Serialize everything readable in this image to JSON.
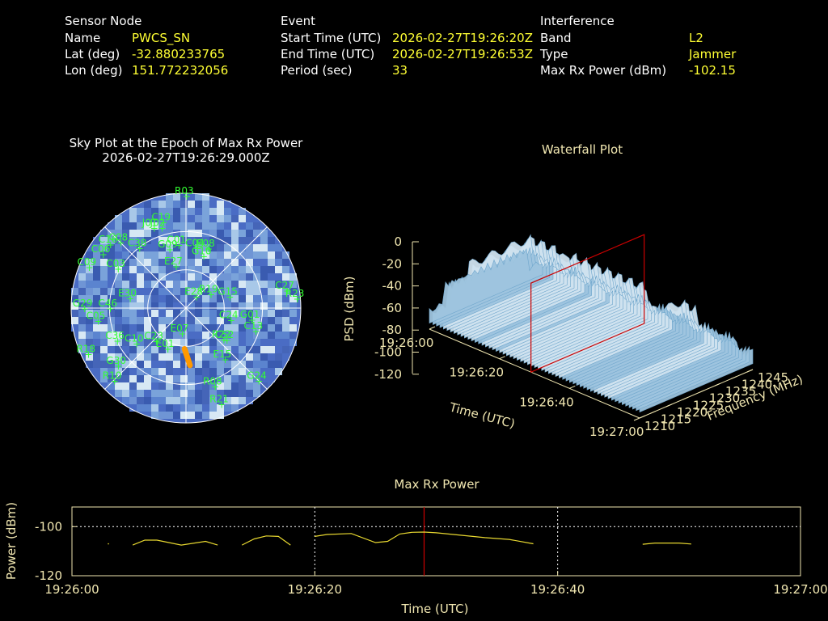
{
  "header": {
    "sensor": {
      "heading": "Sensor Node",
      "rows": [
        {
          "label": "Name",
          "value": "PWCS_SN"
        },
        {
          "label": "Lat (deg)",
          "value": "-32.880233765"
        },
        {
          "label": "Lon (deg)",
          "value": "151.772232056"
        }
      ]
    },
    "event": {
      "heading": "Event",
      "rows": [
        {
          "label": "Start Time (UTC)",
          "value": "2026-02-27T19:26:20Z"
        },
        {
          "label": "End Time (UTC)",
          "value": "2026-02-27T19:26:53Z"
        },
        {
          "label": "Period (sec)",
          "value": "33"
        }
      ]
    },
    "interference": {
      "heading": "Interference",
      "rows": [
        {
          "label": "Band",
          "value": "L2"
        },
        {
          "label": "Type",
          "value": "Jammer"
        },
        {
          "label": "Max Rx Power (dBm)",
          "value": "-102.15"
        }
      ]
    }
  },
  "colors": {
    "satellite_label": "#33ff33",
    "value_text": "#ffff33",
    "cream_text": "#f0e6b0",
    "cursor": "#cc0000",
    "power_line": "#e8d830",
    "jammer_track": "#ff9900"
  },
  "chart_data": [
    {
      "type": "polar-heatmap",
      "title": "Sky Plot at the Epoch of Max Rx Power",
      "subtitle": "2026-02-27T19:26:29.000Z",
      "elevation_rings_deg": [
        0,
        30,
        60,
        90
      ],
      "grid": true,
      "satellites": [
        {
          "prn": "R03",
          "az": 0,
          "el": 2
        },
        {
          "prn": "C19",
          "az": 345,
          "el": 20
        },
        {
          "prn": "J01",
          "az": 338,
          "el": 22
        },
        {
          "prn": "J02",
          "az": 343,
          "el": 24
        },
        {
          "prn": "C16",
          "az": 310,
          "el": 12
        },
        {
          "prn": "C08",
          "az": 315,
          "el": 17
        },
        {
          "prn": "C06",
          "az": 303,
          "el": 12
        },
        {
          "prn": "C09",
          "az": 293,
          "el": 7
        },
        {
          "prn": "C38",
          "az": 322,
          "el": 30
        },
        {
          "prn": "C03",
          "az": 300,
          "el": 28
        },
        {
          "prn": "G09",
          "az": 344,
          "el": 42
        },
        {
          "prn": "C01",
          "az": 353,
          "el": 40
        },
        {
          "prn": "C04",
          "az": 10,
          "el": 42
        },
        {
          "prn": "E08",
          "az": 20,
          "el": 40
        },
        {
          "prn": "G10",
          "az": 18,
          "el": 47
        },
        {
          "prn": "E27",
          "az": 346,
          "el": 56
        },
        {
          "prn": "E28",
          "az": 40,
          "el": 78
        },
        {
          "prn": "R19",
          "az": 60,
          "el": 68
        },
        {
          "prn": "G15",
          "az": 75,
          "el": 55
        },
        {
          "prn": "C27",
          "az": 80,
          "el": 10
        },
        {
          "prn": "R23",
          "az": 85,
          "el": 3
        },
        {
          "prn": "C24",
          "az": 105,
          "el": 54
        },
        {
          "prn": "G01",
          "az": 100,
          "el": 38
        },
        {
          "prn": "C13",
          "az": 108,
          "el": 33
        },
        {
          "prn": "C52",
          "az": 128,
          "el": 50
        },
        {
          "prn": "R22",
          "az": 130,
          "el": 52
        },
        {
          "prn": "E15",
          "az": 143,
          "el": 40
        },
        {
          "prn": "R08",
          "az": 160,
          "el": 25
        },
        {
          "prn": "R21",
          "az": 160,
          "el": 10
        },
        {
          "prn": "G24",
          "az": 135,
          "el": 10
        },
        {
          "prn": "C05",
          "az": 262,
          "el": 20
        },
        {
          "prn": "G29",
          "az": 270,
          "el": 10
        },
        {
          "prn": "C46",
          "az": 270,
          "el": 30
        },
        {
          "prn": "E30",
          "az": 280,
          "el": 45
        },
        {
          "prn": "C10",
          "az": 235,
          "el": 42
        },
        {
          "prn": "C23",
          "az": 223,
          "el": 55
        },
        {
          "prn": "C36",
          "az": 245,
          "el": 30
        },
        {
          "prn": "R18",
          "az": 245,
          "el": 5
        },
        {
          "prn": "G30",
          "az": 230,
          "el": 20
        },
        {
          "prn": "R10",
          "az": 225,
          "el": 10
        },
        {
          "prn": "E01",
          "az": 205,
          "el": 55
        },
        {
          "prn": "E07",
          "az": 190,
          "el": 70
        }
      ],
      "jammer_track": [
        {
          "az": 182,
          "el": 58
        },
        {
          "az": 176,
          "el": 45
        }
      ]
    },
    {
      "type": "surface3d",
      "title": "Waterfall Plot",
      "xlabel": "Time (UTC)",
      "ylabel": "Frequency (MHz)",
      "zlabel": "PSD (dBm)",
      "x_ticks": [
        "19:26:00",
        "19:26:20",
        "19:26:40",
        "19:27:00"
      ],
      "y_ticks": [
        "1210",
        "1215",
        "1220",
        "1225",
        "1230",
        "1235",
        "1240",
        "1245"
      ],
      "z_ticks": [
        "0",
        "-20",
        "-40",
        "-60",
        "-80",
        "-100",
        "-120"
      ],
      "zlim": [
        -120,
        0
      ],
      "floor_dbm": -95,
      "jammed_plateau_dbm": -40,
      "plateau_freq_mhz": [
        1218,
        1237
      ],
      "active_time_windows": [
        [
          "19:26:04",
          "19:26:12"
        ],
        [
          "19:26:15",
          "19:26:18"
        ],
        [
          "19:26:20",
          "19:26:37"
        ],
        [
          "19:26:47",
          "19:26:51"
        ]
      ],
      "cursor_time": "19:26:29"
    },
    {
      "type": "line",
      "title": "Max Rx Power",
      "xlabel": "Time (UTC)",
      "ylabel": "Power (dBm)",
      "x_ticks": [
        "19:26:00",
        "19:26:20",
        "19:26:40",
        "19:27:00"
      ],
      "y_ticks": [
        "-100",
        "-120"
      ],
      "xlim_sec": [
        0,
        60
      ],
      "ylim": [
        -120,
        -92
      ],
      "grid": true,
      "cursor_sec": 29,
      "segments": [
        [
          [
            3,
            -107
          ]
        ],
        [
          [
            5,
            -107.5
          ],
          [
            6,
            -105.5
          ],
          [
            7,
            -105.5
          ],
          [
            9,
            -107.5
          ],
          [
            11,
            -106
          ],
          [
            12,
            -107.5
          ]
        ],
        [
          [
            14,
            -107.5
          ],
          [
            15,
            -105
          ],
          [
            16,
            -103.8
          ],
          [
            17,
            -104
          ],
          [
            18,
            -107.5
          ]
        ],
        [
          [
            20,
            -104
          ],
          [
            21,
            -103.2
          ],
          [
            23,
            -102.8
          ],
          [
            25,
            -106.5
          ],
          [
            26,
            -106
          ],
          [
            27,
            -103
          ],
          [
            28,
            -102.3
          ],
          [
            29,
            -102.2
          ],
          [
            30,
            -102.5
          ],
          [
            32,
            -103.5
          ],
          [
            34,
            -104.5
          ],
          [
            36,
            -105.2
          ],
          [
            38,
            -107
          ]
        ],
        [
          [
            47,
            -107.2
          ],
          [
            48,
            -106.7
          ],
          [
            50,
            -106.7
          ],
          [
            51,
            -107.1
          ]
        ]
      ]
    }
  ]
}
